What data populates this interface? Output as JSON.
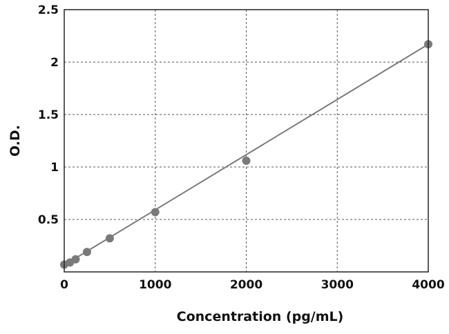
{
  "chart_data": {
    "type": "scatter",
    "xlabel": "Concentration (pg/mL)",
    "ylabel": "O.D.",
    "xlim": [
      0,
      4000
    ],
    "ylim": [
      0,
      2.5
    ],
    "x_ticks": [
      0,
      1000,
      2000,
      3000,
      4000
    ],
    "y_ticks": [
      0.5,
      1,
      1.5,
      2,
      2.5
    ],
    "x_tick_labels": [
      "0",
      "1000",
      "2000",
      "3000",
      "4000"
    ],
    "y_tick_labels": [
      "0.5",
      "1",
      "1.5",
      "2",
      "2.5"
    ],
    "grid": true,
    "grid_style": "dashed",
    "series": [
      {
        "points": [
          {
            "x": 0,
            "y": 0.07
          },
          {
            "x": 62.5,
            "y": 0.09
          },
          {
            "x": 125,
            "y": 0.12
          },
          {
            "x": 250,
            "y": 0.19
          },
          {
            "x": 500,
            "y": 0.32
          },
          {
            "x": 1000,
            "y": 0.57
          },
          {
            "x": 2000,
            "y": 1.06
          },
          {
            "x": 4000,
            "y": 2.17
          }
        ],
        "color": "#7a7a7a"
      }
    ],
    "fit_line": {
      "type": "linear",
      "from": {
        "x": 0,
        "y": 0.065
      },
      "to": {
        "x": 4000,
        "y": 2.17
      },
      "color": "#7a7a7a"
    }
  }
}
